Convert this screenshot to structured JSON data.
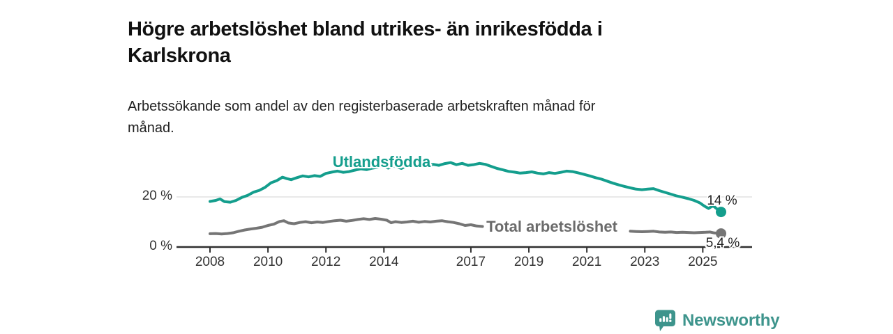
{
  "page": {
    "title_lines": [
      "Högre arbetslöshet bland utrikes- än inrikesfödda i",
      "Karlskrona"
    ],
    "subtitle_lines": [
      "Arbetssökande som andel av den registerbaserade arbetskraften månad för",
      "månad."
    ]
  },
  "branding": {
    "logo_text": "Newsworthy",
    "logo_icon": "bar-chart-speech-bubble-icon",
    "logo_color": "#3d948c"
  },
  "colors": {
    "foreign_born_line": "#149e8d",
    "total_line": "#757575",
    "axis": "#2f2f2f",
    "gridline": "#dcdcdc",
    "tick_text": "#333333",
    "end_label_text": "#222222"
  },
  "chart_data": {
    "type": "line",
    "title": "Högre arbetslöshet bland utrikes- än inrikesfödda i Karlskrona",
    "subtitle": "Arbetssökande som andel av den registerbaserade arbetskraften månad för månad.",
    "xlabel": "",
    "ylabel": "",
    "ylim": [
      0,
      37
    ],
    "xlim_years": [
      2007.9,
      2026.7
    ],
    "grid": "single horizontal gridline at 20 %",
    "legend_position": "inline labels on lines",
    "y_ticks": [
      {
        "label": "20 %",
        "value": 20
      },
      {
        "label": "0 %",
        "value": 0
      }
    ],
    "x_ticks": [
      {
        "label": "2008",
        "year": 2008
      },
      {
        "label": "2010",
        "year": 2010
      },
      {
        "label": "2012",
        "year": 2012
      },
      {
        "label": "2014",
        "year": 2014
      },
      {
        "label": "2017",
        "year": 2017
      },
      {
        "label": "2019",
        "year": 2019
      },
      {
        "label": "2021",
        "year": 2021
      },
      {
        "label": "2023",
        "year": 2023
      },
      {
        "label": "2025",
        "year": 2025
      }
    ],
    "series": [
      {
        "name": "Utlandsfödda",
        "color": "#149e8d",
        "end_label": "14 %",
        "end_value_pct": 14,
        "points": [
          [
            2008.0,
            18.2
          ],
          [
            2008.2,
            18.6
          ],
          [
            2008.35,
            19.2
          ],
          [
            2008.5,
            18.1
          ],
          [
            2008.7,
            17.9
          ],
          [
            2008.9,
            18.6
          ],
          [
            2009.1,
            19.8
          ],
          [
            2009.3,
            20.6
          ],
          [
            2009.5,
            21.9
          ],
          [
            2009.7,
            22.6
          ],
          [
            2009.9,
            23.8
          ],
          [
            2010.1,
            25.6
          ],
          [
            2010.3,
            26.5
          ],
          [
            2010.5,
            27.9
          ],
          [
            2010.65,
            27.3
          ],
          [
            2010.8,
            26.9
          ],
          [
            2011.0,
            27.7
          ],
          [
            2011.2,
            28.4
          ],
          [
            2011.4,
            28.0
          ],
          [
            2011.6,
            28.5
          ],
          [
            2011.8,
            28.2
          ],
          [
            2012.0,
            29.4
          ],
          [
            2012.2,
            29.9
          ],
          [
            2012.4,
            30.3
          ],
          [
            2012.6,
            29.8
          ],
          [
            2012.8,
            30.1
          ],
          [
            2013.0,
            30.7
          ],
          [
            2013.2,
            31.2
          ],
          [
            2013.4,
            30.9
          ],
          [
            2013.6,
            31.5
          ],
          [
            2013.8,
            31.9
          ],
          [
            2014.0,
            32.3
          ],
          [
            2014.15,
            31.5
          ],
          [
            2014.3,
            32.4
          ],
          [
            2014.45,
            32.0
          ],
          [
            2014.6,
            31.4
          ],
          [
            2014.75,
            32.2
          ],
          [
            2014.9,
            32.5
          ],
          [
            2015.1,
            32.1
          ],
          [
            2015.3,
            32.7
          ],
          [
            2015.5,
            32.3
          ],
          [
            2015.7,
            33.0
          ],
          [
            2015.9,
            32.6
          ],
          [
            2016.1,
            33.3
          ],
          [
            2016.3,
            33.7
          ],
          [
            2016.5,
            32.9
          ],
          [
            2016.7,
            33.4
          ],
          [
            2016.9,
            32.6
          ],
          [
            2017.1,
            32.9
          ],
          [
            2017.3,
            33.4
          ],
          [
            2017.5,
            33.0
          ],
          [
            2017.7,
            32.2
          ],
          [
            2017.9,
            31.4
          ],
          [
            2018.1,
            30.8
          ],
          [
            2018.3,
            30.2
          ],
          [
            2018.5,
            29.9
          ],
          [
            2018.7,
            29.5
          ],
          [
            2018.9,
            29.7
          ],
          [
            2019.1,
            30.0
          ],
          [
            2019.3,
            29.5
          ],
          [
            2019.5,
            29.2
          ],
          [
            2019.7,
            29.7
          ],
          [
            2019.9,
            29.4
          ],
          [
            2020.1,
            29.8
          ],
          [
            2020.3,
            30.3
          ],
          [
            2020.5,
            30.1
          ],
          [
            2020.7,
            29.6
          ],
          [
            2020.9,
            29.0
          ],
          [
            2021.1,
            28.4
          ],
          [
            2021.3,
            27.7
          ],
          [
            2021.5,
            27.1
          ],
          [
            2021.7,
            26.3
          ],
          [
            2021.9,
            25.5
          ],
          [
            2022.1,
            24.8
          ],
          [
            2022.3,
            24.2
          ],
          [
            2022.5,
            23.6
          ],
          [
            2022.7,
            23.1
          ],
          [
            2022.9,
            22.9
          ],
          [
            2023.1,
            23.1
          ],
          [
            2023.3,
            23.3
          ],
          [
            2023.5,
            22.5
          ],
          [
            2023.7,
            21.8
          ],
          [
            2023.9,
            21.1
          ],
          [
            2024.1,
            20.4
          ],
          [
            2024.3,
            19.9
          ],
          [
            2024.5,
            19.3
          ],
          [
            2024.7,
            18.6
          ],
          [
            2024.9,
            17.6
          ],
          [
            2025.05,
            16.4
          ],
          [
            2025.2,
            15.4
          ],
          [
            2025.35,
            16.5
          ],
          [
            2025.5,
            15.1
          ],
          [
            2025.63,
            14.0
          ]
        ]
      },
      {
        "name": "Total arbetslöshet",
        "color": "#757575",
        "end_label": "5,4 %",
        "end_value_pct": 5.4,
        "points": [
          [
            2008.0,
            5.3
          ],
          [
            2008.2,
            5.4
          ],
          [
            2008.4,
            5.2
          ],
          [
            2008.6,
            5.4
          ],
          [
            2008.8,
            5.7
          ],
          [
            2009.0,
            6.3
          ],
          [
            2009.2,
            6.8
          ],
          [
            2009.4,
            7.2
          ],
          [
            2009.6,
            7.5
          ],
          [
            2009.8,
            7.9
          ],
          [
            2010.0,
            8.6
          ],
          [
            2010.2,
            9.1
          ],
          [
            2010.4,
            10.2
          ],
          [
            2010.55,
            10.5
          ],
          [
            2010.7,
            9.6
          ],
          [
            2010.9,
            9.3
          ],
          [
            2011.1,
            9.8
          ],
          [
            2011.3,
            10.1
          ],
          [
            2011.5,
            9.7
          ],
          [
            2011.7,
            10.0
          ],
          [
            2011.9,
            9.8
          ],
          [
            2012.1,
            10.2
          ],
          [
            2012.3,
            10.5
          ],
          [
            2012.5,
            10.7
          ],
          [
            2012.7,
            10.3
          ],
          [
            2012.9,
            10.6
          ],
          [
            2013.1,
            11.0
          ],
          [
            2013.3,
            11.3
          ],
          [
            2013.5,
            11.0
          ],
          [
            2013.7,
            11.4
          ],
          [
            2013.9,
            11.1
          ],
          [
            2014.1,
            10.7
          ],
          [
            2014.25,
            9.7
          ],
          [
            2014.4,
            10.1
          ],
          [
            2014.6,
            9.8
          ],
          [
            2014.8,
            10.0
          ],
          [
            2015.0,
            10.3
          ],
          [
            2015.2,
            9.9
          ],
          [
            2015.4,
            10.2
          ],
          [
            2015.6,
            10.0
          ],
          [
            2015.8,
            10.3
          ],
          [
            2016.0,
            10.5
          ],
          [
            2016.2,
            10.1
          ],
          [
            2016.4,
            9.8
          ],
          [
            2016.6,
            9.3
          ],
          [
            2016.8,
            8.6
          ],
          [
            2017.0,
            8.9
          ],
          [
            2017.2,
            8.4
          ],
          [
            2017.4,
            8.2
          ],
          [
            2018.0,
            null
          ],
          [
            2019.0,
            null
          ],
          [
            2020.0,
            null
          ],
          [
            2021.0,
            null
          ],
          [
            2022.0,
            null
          ],
          [
            2022.5,
            6.3
          ],
          [
            2022.7,
            6.2
          ],
          [
            2022.9,
            6.1
          ],
          [
            2023.1,
            6.2
          ],
          [
            2023.3,
            6.3
          ],
          [
            2023.5,
            6.0
          ],
          [
            2023.7,
            5.9
          ],
          [
            2023.9,
            6.0
          ],
          [
            2024.1,
            5.8
          ],
          [
            2024.3,
            5.9
          ],
          [
            2024.5,
            5.8
          ],
          [
            2024.7,
            5.7
          ],
          [
            2024.9,
            5.8
          ],
          [
            2025.1,
            5.9
          ],
          [
            2025.25,
            6.0
          ],
          [
            2025.4,
            5.6
          ],
          [
            2025.63,
            5.4
          ]
        ]
      }
    ]
  }
}
